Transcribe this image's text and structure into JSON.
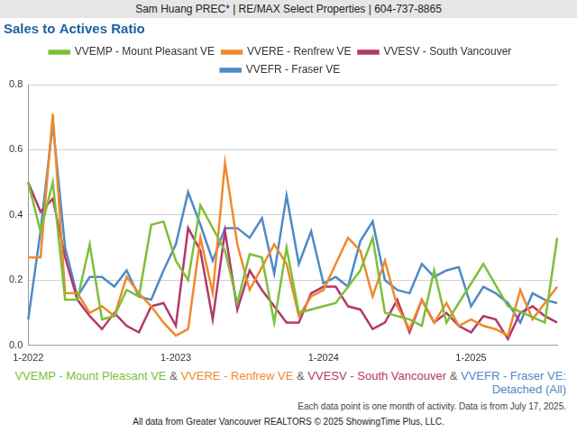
{
  "chart_data": {
    "type": "line",
    "header": "Sam Huang PREC* | RE/MAX Select Properties | 604-737-8865",
    "title": "Sales to Actives Ratio",
    "caption_joiner": "&",
    "caption_suffix": ": Detached (All)",
    "notes": [
      "Each data point is one month of activity. Data is from July 17, 2025.",
      "All data from Greater Vancouver REALTORS © 2025 ShowingTime Plus, LLC."
    ],
    "categories": [
      "1-2022",
      null,
      null,
      null,
      null,
      null,
      null,
      null,
      null,
      null,
      null,
      null,
      "1-2023",
      null,
      null,
      null,
      null,
      null,
      null,
      null,
      null,
      null,
      null,
      null,
      "1-2024",
      null,
      null,
      null,
      null,
      null,
      null,
      null,
      null,
      null,
      null,
      null,
      "1-2025",
      null,
      null,
      null,
      null,
      null,
      null,
      null
    ],
    "series": [
      {
        "name": "VVEMP - Mount Pleasant VE",
        "color": "#7dbf3a",
        "values": [
          0.5,
          0.35,
          0.5,
          0.14,
          0.14,
          0.31,
          0.08,
          0.09,
          0.17,
          0.15,
          0.37,
          0.38,
          0.26,
          0.2,
          0.43,
          0.36,
          0.29,
          0.13,
          0.28,
          0.27,
          0.07,
          0.3,
          0.1,
          null,
          0.12,
          0.13,
          null,
          0.23,
          0.33,
          0.1,
          null,
          0.08,
          0.06,
          0.23,
          0.07,
          null,
          null,
          0.25,
          null,
          0.12,
          null,
          null,
          0.07,
          0.33
        ]
      },
      {
        "name": "VVERE - Renfrew VE",
        "color": "#f0892c",
        "values": [
          0.27,
          0.27,
          0.71,
          0.16,
          0.16,
          0.1,
          0.12,
          0.09,
          0.21,
          0.16,
          0.12,
          0.07,
          0.03,
          0.05,
          0.33,
          0.16,
          0.56,
          0.31,
          0.17,
          0.24,
          0.31,
          0.25,
          0.09,
          0.15,
          0.17,
          0.25,
          0.33,
          0.29,
          0.15,
          0.26,
          0.12,
          0.05,
          0.14,
          0.07,
          0.13,
          0.06,
          0.08,
          0.06,
          0.05,
          0.03,
          0.17,
          0.08,
          0.13,
          0.18
        ]
      },
      {
        "name": "VVESV - South Vancouver",
        "color": "#b3386b",
        "values": [
          0.5,
          0.41,
          0.45,
          0.27,
          0.14,
          0.09,
          0.05,
          0.1,
          0.06,
          0.04,
          0.12,
          0.13,
          0.06,
          0.36,
          0.29,
          0.08,
          0.35,
          0.11,
          0.23,
          0.17,
          0.12,
          0.07,
          0.07,
          0.16,
          0.18,
          0.18,
          0.12,
          0.11,
          0.05,
          0.07,
          0.14,
          0.04,
          0.14,
          0.07,
          0.1,
          0.06,
          0.04,
          0.09,
          0.08,
          0.02,
          0.1,
          0.12,
          0.09,
          0.07
        ]
      },
      {
        "name": "VVEFR - Fraser VE",
        "color": "#4f8ac6",
        "values": [
          0.08,
          0.35,
          0.68,
          0.3,
          0.15,
          0.21,
          0.21,
          0.18,
          0.23,
          0.15,
          0.14,
          0.23,
          0.31,
          0.47,
          0.37,
          0.26,
          0.36,
          0.36,
          0.33,
          0.39,
          0.22,
          0.46,
          0.25,
          0.35,
          0.19,
          0.21,
          0.18,
          0.32,
          0.38,
          0.2,
          0.17,
          0.16,
          0.25,
          0.21,
          0.23,
          0.24,
          0.12,
          0.18,
          0.16,
          0.13,
          0.07,
          0.16,
          0.14,
          0.13
        ]
      }
    ],
    "ylim": [
      0,
      0.8
    ],
    "yticks": [
      {
        "value": 0,
        "label": "0.0"
      },
      0.2,
      0.4,
      0.6,
      0.8
    ],
    "grid": "y",
    "legend": "top"
  }
}
